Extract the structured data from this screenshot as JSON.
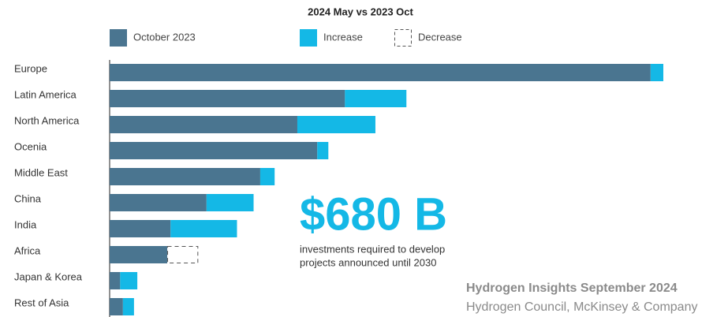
{
  "chart_data": {
    "type": "stacked_barh",
    "title": "2024 May vs 2023 Oct",
    "categories": [
      "Europe",
      "Latin America",
      "North America",
      "Ocenia",
      "Middle East",
      "China",
      "India",
      "Africa",
      "Japan & Korea",
      "Rest of Asia"
    ],
    "series": [
      {
        "name": "October 2023",
        "color": "#4a7590",
        "values": [
          97.7,
          42.5,
          33.9,
          37.5,
          27.2,
          17.5,
          11.0,
          10.4,
          1.9,
          2.4
        ]
      },
      {
        "name": "Increase",
        "color": "#14b8e6",
        "values": [
          2.3,
          11.1,
          14.1,
          2.0,
          2.6,
          8.5,
          12.0,
          null,
          3.1,
          2.0
        ]
      },
      {
        "name": "Decrease",
        "color": "#555555",
        "values": [
          null,
          null,
          null,
          null,
          null,
          null,
          null,
          5.6,
          null,
          null
        ]
      }
    ],
    "xlim": [
      0,
      100
    ],
    "annotation": {
      "headline": "$680 B",
      "lines": [
        "investments required to develop",
        "projects announced until 2030"
      ]
    },
    "source": [
      "Hydrogen Insights September 2024",
      "Hydrogen Council, McKinsey & Company"
    ]
  }
}
